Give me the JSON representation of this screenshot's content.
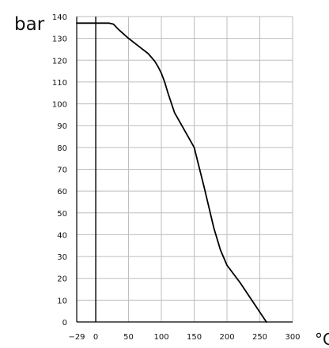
{
  "chart_data": {
    "type": "line",
    "title": "",
    "xlabel": "°C",
    "ylabel": "bar",
    "x_ticks": [
      -29,
      0,
      50,
      100,
      150,
      200,
      250,
      300
    ],
    "y_ticks": [
      0,
      10,
      20,
      30,
      40,
      50,
      60,
      70,
      80,
      90,
      100,
      110,
      120,
      130,
      140
    ],
    "xlim": [
      -29,
      300
    ],
    "ylim": [
      0,
      140
    ],
    "grid": true,
    "reference_line_x": 0,
    "series": [
      {
        "x": [
          -29,
          20,
          27,
          35,
          50,
          65,
          80,
          90,
          95,
          100,
          105,
          110,
          120,
          135,
          150,
          165,
          180,
          190,
          200,
          220,
          240,
          260
        ],
        "y": [
          137,
          137,
          136.5,
          134,
          130,
          126.5,
          123,
          119.5,
          117,
          114,
          110,
          105,
          96,
          88,
          80,
          62,
          43,
          33,
          26,
          18,
          9,
          0
        ]
      }
    ],
    "colors": {
      "line": "#000000",
      "grid": "#bdbdbd",
      "axis": "#000000",
      "text": "#111111"
    }
  }
}
